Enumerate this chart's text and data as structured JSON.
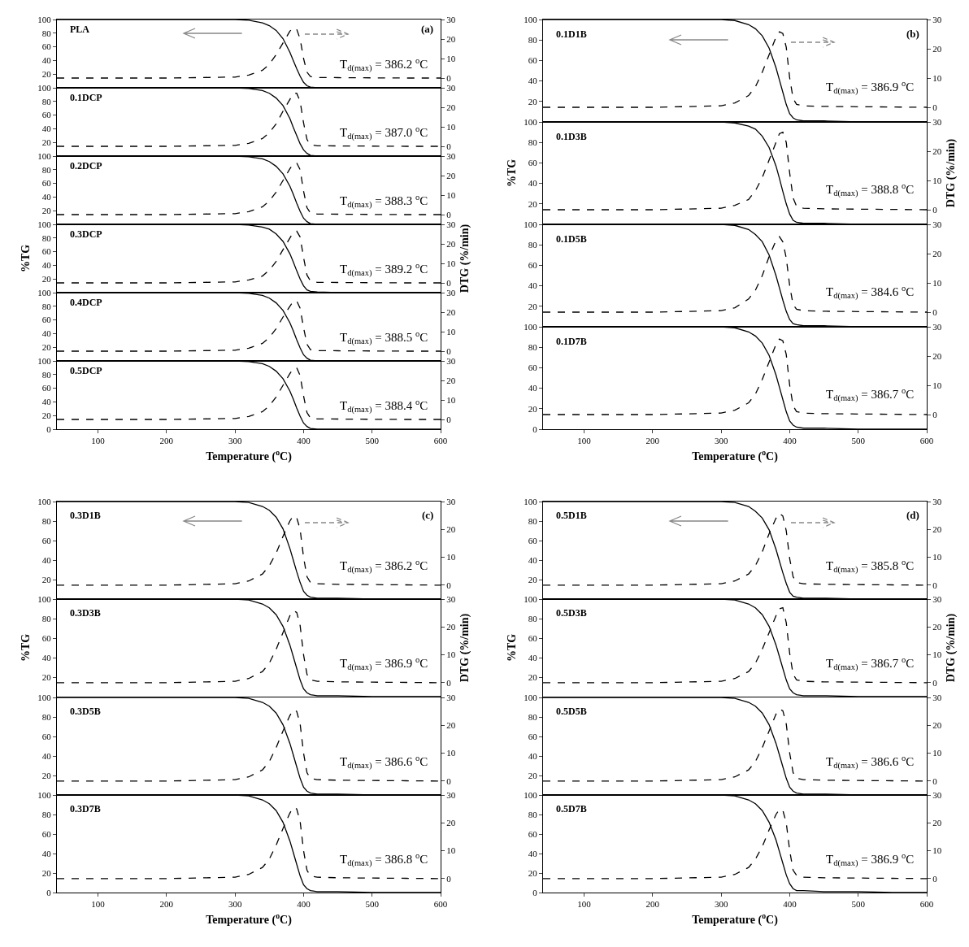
{
  "chart_data": [
    {
      "type": "line",
      "x": [
        40,
        200,
        300,
        320,
        340,
        350,
        360,
        370,
        380,
        385,
        390,
        395,
        400,
        405,
        410,
        420,
        450,
        500,
        550,
        600
      ],
      "xlim": [
        40,
        600
      ],
      "xticks": [
        100,
        200,
        300,
        400,
        500,
        600
      ],
      "ylim": [
        0,
        100
      ],
      "yticks": [
        20,
        40,
        60,
        80,
        100
      ],
      "y2lim": [
        -5,
        30
      ],
      "y2ticks": [
        0,
        10,
        20,
        30
      ],
      "tick_labels": "y",
      "annotations": [
        "PLA",
        "T$_{d(max)}$ = 386.2 $^{o}$C",
        "(a)"
      ],
      "series": [
        {
          "color": "#000000",
          "line_style": "solid",
          "values": [
            100,
            100,
            100,
            99,
            95,
            91,
            84,
            72,
            52,
            40,
            28,
            17,
            8,
            3,
            1,
            0,
            0,
            0,
            0,
            0
          ]
        },
        {
          "color": "#000000",
          "line_style": "dashed",
          "axis": "y2",
          "values": [
            0,
            0,
            0.5,
            1.5,
            4,
            7,
            12,
            18,
            24,
            25.8,
            25,
            20,
            10,
            3,
            0.8,
            0.3,
            0.2,
            0.1,
            0,
            0
          ]
        }
      ]
    },
    {
      "type": "line",
      "x": [
        40,
        200,
        300,
        320,
        340,
        350,
        360,
        370,
        380,
        385,
        390,
        395,
        400,
        405,
        410,
        420,
        450,
        500,
        550,
        600
      ],
      "xlim": [
        40,
        600
      ],
      "xticks": [
        100,
        200,
        300,
        400,
        500,
        600
      ],
      "ylim": [
        0,
        100
      ],
      "yticks": [
        20,
        40,
        60,
        80,
        100
      ],
      "y2lim": [
        -5,
        30
      ],
      "y2ticks": [
        0,
        10,
        20,
        30
      ],
      "tick_labels": "y",
      "annotations": [
        "0.1DCP",
        "T$_{d(max)}$ = 387.0 $^{o}$C"
      ],
      "series": [
        {
          "color": "#000000",
          "line_style": "solid",
          "values": [
            100,
            100,
            100,
            99,
            96,
            92,
            85,
            74,
            55,
            42,
            30,
            18,
            9,
            4,
            1,
            0,
            0,
            0,
            0,
            0
          ]
        },
        {
          "color": "#000000",
          "line_style": "dashed",
          "axis": "y2",
          "values": [
            0,
            0,
            0.5,
            1.5,
            4,
            7,
            11.5,
            18,
            24,
            27,
            27.2,
            23,
            12,
            3.5,
            0.8,
            0.3,
            0.2,
            0.1,
            0,
            0
          ]
        }
      ]
    },
    {
      "type": "line",
      "x": [
        40,
        200,
        300,
        320,
        340,
        350,
        360,
        370,
        380,
        385,
        390,
        395,
        400,
        405,
        410,
        420,
        450,
        500,
        550,
        600
      ],
      "xlim": [
        40,
        600
      ],
      "xticks": [
        100,
        200,
        300,
        400,
        500,
        600
      ],
      "ylim": [
        0,
        100
      ],
      "yticks": [
        20,
        40,
        60,
        80,
        100
      ],
      "y2lim": [
        -5,
        30
      ],
      "y2ticks": [
        0,
        10,
        20,
        30
      ],
      "tick_labels": "y",
      "annotations": [
        "0.2DCP",
        "T$_{d(max)}$ = 388.3 $^{o}$C"
      ],
      "series": [
        {
          "color": "#000000",
          "line_style": "solid",
          "values": [
            100,
            100,
            100,
            99,
            96,
            92,
            85,
            74,
            56,
            44,
            31,
            19,
            9,
            4,
            1,
            0,
            0,
            0,
            0,
            0
          ]
        },
        {
          "color": "#000000",
          "line_style": "dashed",
          "axis": "y2",
          "values": [
            0,
            0,
            0.5,
            1.5,
            4,
            7,
            11.5,
            17.5,
            23.5,
            26,
            26.5,
            23,
            12,
            3.5,
            0.8,
            0.3,
            0.2,
            0.1,
            0,
            0
          ]
        }
      ]
    },
    {
      "type": "line",
      "x": [
        40,
        200,
        300,
        320,
        340,
        350,
        360,
        370,
        380,
        385,
        390,
        395,
        400,
        405,
        410,
        420,
        450,
        500,
        550,
        600
      ],
      "xlim": [
        40,
        600
      ],
      "xticks": [
        100,
        200,
        300,
        400,
        500,
        600
      ],
      "ylim": [
        0,
        100
      ],
      "yticks": [
        20,
        40,
        60,
        80,
        100
      ],
      "y2lim": [
        -5,
        30
      ],
      "y2ticks": [
        0,
        10,
        20,
        30
      ],
      "tick_labels": "y",
      "ylabel": "%TG",
      "y2label": "DTG (%/min)",
      "annotations": [
        "0.3DCP",
        "T$_{d(max)}$ = 389.2 $^{o}$C"
      ],
      "series": [
        {
          "color": "#000000",
          "line_style": "solid",
          "values": [
            100,
            100,
            100,
            99,
            96,
            93,
            86,
            75,
            57,
            45,
            32,
            20,
            10,
            4,
            2,
            1,
            0,
            0,
            0,
            0
          ]
        },
        {
          "color": "#000000",
          "line_style": "dashed",
          "axis": "y2",
          "values": [
            0,
            0,
            0.5,
            1.5,
            3.5,
            6.5,
            11,
            17,
            23,
            25.8,
            26.5,
            23.5,
            13,
            4,
            1,
            0.3,
            0.2,
            0.1,
            0,
            0
          ]
        }
      ]
    },
    {
      "type": "line",
      "x": [
        40,
        200,
        300,
        320,
        340,
        350,
        360,
        370,
        380,
        385,
        390,
        395,
        400,
        405,
        410,
        420,
        450,
        500,
        550,
        600
      ],
      "xlim": [
        40,
        600
      ],
      "xticks": [
        100,
        200,
        300,
        400,
        500,
        600
      ],
      "ylim": [
        0,
        100
      ],
      "yticks": [
        20,
        40,
        60,
        80,
        100
      ],
      "y2lim": [
        -5,
        30
      ],
      "y2ticks": [
        0,
        10,
        20,
        30
      ],
      "tick_labels": "y",
      "annotations": [
        "0.4DCP",
        "T$_{d(max)}$ = 388.5 $^{o}$C"
      ],
      "series": [
        {
          "color": "#000000",
          "line_style": "solid",
          "values": [
            100,
            100,
            100,
            99,
            96,
            92,
            85,
            74,
            56,
            44,
            31,
            19,
            9,
            4,
            1,
            0,
            0,
            0,
            0,
            0
          ]
        },
        {
          "color": "#000000",
          "line_style": "dashed",
          "axis": "y2",
          "values": [
            0,
            0,
            0.5,
            1.5,
            4,
            7,
            11.5,
            17.5,
            23,
            25.5,
            25.8,
            22,
            12,
            3.5,
            0.8,
            0.3,
            0.2,
            0.1,
            0,
            0
          ]
        }
      ]
    },
    {
      "type": "line",
      "x": [
        40,
        200,
        300,
        320,
        340,
        350,
        360,
        370,
        380,
        385,
        390,
        395,
        400,
        405,
        410,
        420,
        450,
        500,
        550,
        600
      ],
      "xlim": [
        40,
        600
      ],
      "xticks": [
        100,
        200,
        300,
        400,
        500,
        600
      ],
      "ylim": [
        0,
        100
      ],
      "yticks": [
        0,
        20,
        40,
        60,
        80,
        100
      ],
      "y2lim": [
        -5,
        30
      ],
      "y2ticks": [
        0,
        10,
        20,
        30
      ],
      "xlabel": "Temperature ($^{o}$C)",
      "annotations": [
        "0.5DCP",
        "T$_{d(max)}$ = 388.4 $^{o}$C"
      ],
      "series": [
        {
          "color": "#000000",
          "line_style": "solid",
          "values": [
            100,
            100,
            100,
            99,
            96,
            92,
            85,
            74,
            56,
            44,
            31,
            19,
            9,
            4,
            1,
            0,
            0,
            0,
            0,
            0
          ]
        },
        {
          "color": "#000000",
          "line_style": "dashed",
          "axis": "y2",
          "values": [
            0,
            0,
            0.5,
            1.5,
            4,
            7,
            11.5,
            17.5,
            23.5,
            26,
            26.5,
            22.5,
            12,
            3.5,
            0.8,
            0.3,
            0.2,
            0.1,
            0,
            0
          ]
        }
      ]
    },
    {
      "type": "line",
      "x": [
        40,
        200,
        300,
        320,
        340,
        350,
        360,
        370,
        380,
        385,
        390,
        395,
        400,
        405,
        410,
        420,
        450,
        500,
        550,
        600
      ],
      "xlim": [
        40,
        600
      ],
      "xticks": [
        100,
        200,
        300,
        400,
        500,
        600
      ],
      "ylim": [
        0,
        100
      ],
      "yticks": [
        20,
        40,
        60,
        80,
        100
      ],
      "y2lim": [
        -5,
        30
      ],
      "y2ticks": [
        0,
        10,
        20,
        30
      ],
      "tick_labels": "y",
      "annotations": [
        "0.1D1B",
        "T$_{d(max)}$ = 386.9 $^{o}$C",
        "(b)"
      ],
      "series": [
        {
          "color": "#000000",
          "line_style": "solid",
          "values": [
            100,
            100,
            100,
            99,
            95,
            91,
            84,
            72,
            53,
            41,
            29,
            17,
            8,
            4,
            2,
            1,
            1,
            0,
            0,
            0
          ]
        },
        {
          "color": "#000000",
          "line_style": "dashed",
          "axis": "y2",
          "values": [
            0,
            0,
            0.5,
            1.5,
            4,
            7,
            12,
            18,
            24,
            25.8,
            25.2,
            20.5,
            10,
            3,
            1,
            0.5,
            0.3,
            0.2,
            0.1,
            0
          ]
        }
      ]
    },
    {
      "type": "line",
      "x": [
        40,
        200,
        300,
        320,
        340,
        350,
        360,
        370,
        380,
        385,
        390,
        395,
        400,
        405,
        410,
        420,
        450,
        500,
        550,
        600
      ],
      "xlim": [
        40,
        600
      ],
      "xticks": [
        100,
        200,
        300,
        400,
        500,
        600
      ],
      "ylim": [
        0,
        100
      ],
      "yticks": [
        20,
        40,
        60,
        80,
        100
      ],
      "y2lim": [
        -5,
        30
      ],
      "y2ticks": [
        0,
        10,
        20,
        30
      ],
      "tick_labels": "y",
      "ylabel": "%TG",
      "y2label": "DTG (%/min)",
      "annotations": [
        "0.1D3B",
        "T$_{d(max)}$ = 388.8 $^{o}$C"
      ],
      "series": [
        {
          "color": "#000000",
          "line_style": "solid",
          "values": [
            100,
            100,
            100,
            99,
            96,
            93,
            86,
            75,
            57,
            45,
            32,
            20,
            10,
            4,
            2,
            1,
            1,
            0,
            0,
            0
          ]
        },
        {
          "color": "#000000",
          "line_style": "dashed",
          "axis": "y2",
          "values": [
            0,
            0,
            0.5,
            1.5,
            3.5,
            6.5,
            11,
            17,
            23,
            26,
            26.5,
            23,
            12.5,
            4,
            1.2,
            0.5,
            0.3,
            0.2,
            0.1,
            0
          ]
        }
      ]
    },
    {
      "type": "line",
      "x": [
        40,
        200,
        300,
        320,
        340,
        350,
        360,
        370,
        380,
        385,
        390,
        395,
        400,
        405,
        410,
        420,
        450,
        500,
        550,
        600
      ],
      "xlim": [
        40,
        600
      ],
      "xticks": [
        100,
        200,
        300,
        400,
        500,
        600
      ],
      "ylim": [
        0,
        100
      ],
      "yticks": [
        20,
        40,
        60,
        80,
        100
      ],
      "y2lim": [
        -5,
        30
      ],
      "y2ticks": [
        0,
        10,
        20,
        30
      ],
      "tick_labels": "y",
      "annotations": [
        "0.1D5B",
        "T$_{d(max)}$ = 384.6 $^{o}$C"
      ],
      "series": [
        {
          "color": "#000000",
          "line_style": "solid",
          "values": [
            100,
            100,
            100,
            99,
            95,
            90,
            83,
            70,
            50,
            38,
            26,
            15,
            7,
            3,
            2,
            1,
            1,
            0,
            0,
            0
          ]
        },
        {
          "color": "#000000",
          "line_style": "dashed",
          "axis": "y2",
          "values": [
            0,
            0,
            0.5,
            1.5,
            4.5,
            7.5,
            12.5,
            19,
            24.5,
            25.8,
            24,
            18.5,
            9,
            2.5,
            1,
            0.5,
            0.3,
            0.2,
            0.1,
            0
          ]
        }
      ]
    },
    {
      "type": "line",
      "x": [
        40,
        200,
        300,
        320,
        340,
        350,
        360,
        370,
        380,
        385,
        390,
        395,
        400,
        405,
        410,
        420,
        450,
        500,
        550,
        600
      ],
      "xlim": [
        40,
        600
      ],
      "xticks": [
        100,
        200,
        300,
        400,
        500,
        600
      ],
      "ylim": [
        0,
        100
      ],
      "yticks": [
        0,
        20,
        40,
        60,
        80,
        100
      ],
      "y2lim": [
        -5,
        30
      ],
      "y2ticks": [
        0,
        10,
        20,
        30
      ],
      "xlabel": "Temperature ($^{o}$C)",
      "annotations": [
        "0.1D7B",
        "T$_{d(max)}$ = 386.7 $^{o}$C"
      ],
      "series": [
        {
          "color": "#000000",
          "line_style": "solid",
          "values": [
            100,
            100,
            100,
            99,
            95,
            91,
            84,
            72,
            53,
            41,
            29,
            17,
            8,
            4,
            2,
            1,
            1,
            0,
            0,
            0
          ]
        },
        {
          "color": "#000000",
          "line_style": "dashed",
          "axis": "y2",
          "values": [
            0,
            0,
            0.5,
            1.5,
            4,
            7,
            12,
            18,
            24,
            25.8,
            25.2,
            20.5,
            10,
            3,
            1,
            0.5,
            0.3,
            0.2,
            0.1,
            0
          ]
        }
      ]
    },
    {
      "type": "line",
      "x": [
        40,
        200,
        300,
        320,
        340,
        350,
        360,
        370,
        380,
        385,
        390,
        395,
        400,
        405,
        410,
        420,
        450,
        500,
        550,
        600
      ],
      "xlim": [
        40,
        600
      ],
      "xticks": [
        100,
        200,
        300,
        400,
        500,
        600
      ],
      "ylim": [
        0,
        100
      ],
      "yticks": [
        20,
        40,
        60,
        80,
        100
      ],
      "y2lim": [
        -5,
        30
      ],
      "y2ticks": [
        0,
        10,
        20,
        30
      ],
      "tick_labels": "y",
      "annotations": [
        "0.3D1B",
        "T$_{d(max)}$ = 386.2 $^{o}$C",
        "(c)"
      ],
      "series": [
        {
          "color": "#000000",
          "line_style": "solid",
          "values": [
            100,
            100,
            100,
            99,
            95,
            91,
            84,
            72,
            52,
            40,
            28,
            17,
            8,
            4,
            2,
            1,
            1,
            0,
            0,
            0
          ]
        },
        {
          "color": "#000000",
          "line_style": "dashed",
          "axis": "y2",
          "values": [
            0,
            0,
            0.5,
            1.5,
            4,
            7,
            11.5,
            17.5,
            23,
            24.8,
            24.2,
            20,
            10,
            3,
            1,
            0.5,
            0.3,
            0.2,
            0.1,
            0
          ]
        }
      ]
    },
    {
      "type": "line",
      "x": [
        40,
        200,
        300,
        320,
        340,
        350,
        360,
        370,
        380,
        385,
        390,
        395,
        400,
        405,
        410,
        420,
        450,
        500,
        550,
        600
      ],
      "xlim": [
        40,
        600
      ],
      "xticks": [
        100,
        200,
        300,
        400,
        500,
        600
      ],
      "ylim": [
        0,
        100
      ],
      "yticks": [
        20,
        40,
        60,
        80,
        100
      ],
      "y2lim": [
        -5,
        30
      ],
      "y2ticks": [
        0,
        10,
        20,
        30
      ],
      "tick_labels": "y",
      "ylabel": "%TG",
      "y2label": "DTG (%/min)",
      "annotations": [
        "0.3D3B",
        "T$_{d(max)}$ = 386.9 $^{o}$C"
      ],
      "series": [
        {
          "color": "#000000",
          "line_style": "solid",
          "values": [
            100,
            100,
            100,
            99,
            95,
            91,
            84,
            72,
            53,
            41,
            29,
            17,
            8,
            4,
            2,
            1,
            1,
            0,
            0,
            0
          ]
        },
        {
          "color": "#000000",
          "line_style": "dashed",
          "axis": "y2",
          "values": [
            0,
            0,
            0.5,
            1.5,
            4,
            7,
            12,
            18,
            24,
            25.8,
            25.2,
            20.5,
            10,
            3,
            1,
            0.5,
            0.3,
            0.2,
            0.1,
            0
          ]
        }
      ]
    },
    {
      "type": "line",
      "x": [
        40,
        200,
        300,
        320,
        340,
        350,
        360,
        370,
        380,
        385,
        390,
        395,
        400,
        405,
        410,
        420,
        450,
        500,
        550,
        600
      ],
      "xlim": [
        40,
        600
      ],
      "xticks": [
        100,
        200,
        300,
        400,
        500,
        600
      ],
      "ylim": [
        0,
        100
      ],
      "yticks": [
        20,
        40,
        60,
        80,
        100
      ],
      "y2lim": [
        -5,
        30
      ],
      "y2ticks": [
        0,
        10,
        20,
        30
      ],
      "tick_labels": "y",
      "annotations": [
        "0.3D5B",
        "T$_{d(max)}$ = 386.6 $^{o}$C"
      ],
      "series": [
        {
          "color": "#000000",
          "line_style": "solid",
          "values": [
            100,
            100,
            100,
            99,
            95,
            91,
            84,
            72,
            53,
            41,
            29,
            17,
            8,
            4,
            2,
            1,
            1,
            0,
            0,
            0
          ]
        },
        {
          "color": "#000000",
          "line_style": "dashed",
          "axis": "y2",
          "values": [
            0,
            0,
            0.5,
            1.5,
            4,
            7,
            12,
            18,
            23.5,
            25.5,
            25,
            20.5,
            10,
            3,
            1,
            0.5,
            0.3,
            0.2,
            0.1,
            0
          ]
        }
      ]
    },
    {
      "type": "line",
      "x": [
        40,
        200,
        300,
        320,
        340,
        350,
        360,
        370,
        380,
        385,
        390,
        395,
        400,
        405,
        410,
        420,
        450,
        500,
        550,
        600
      ],
      "xlim": [
        40,
        600
      ],
      "xticks": [
        100,
        200,
        300,
        400,
        500,
        600
      ],
      "ylim": [
        0,
        100
      ],
      "yticks": [
        0,
        20,
        40,
        60,
        80,
        100
      ],
      "y2lim": [
        -5,
        30
      ],
      "y2ticks": [
        0,
        10,
        20,
        30
      ],
      "xlabel": "Temperature ($^{o}$C)",
      "annotations": [
        "0.3D7B",
        "T$_{d(max)}$ = 386.8 $^{o}$C"
      ],
      "series": [
        {
          "color": "#000000",
          "line_style": "solid",
          "values": [
            100,
            100,
            100,
            99,
            95,
            91,
            84,
            72,
            53,
            41,
            29,
            17,
            8,
            4,
            2,
            1,
            1,
            0,
            0,
            0
          ]
        },
        {
          "color": "#000000",
          "line_style": "dashed",
          "axis": "y2",
          "values": [
            0,
            0,
            0.5,
            1.5,
            4,
            7,
            12,
            18,
            23.5,
            25.5,
            25,
            20.5,
            10,
            3,
            1,
            0.5,
            0.3,
            0.2,
            0.1,
            0
          ]
        }
      ]
    },
    {
      "type": "line",
      "x": [
        40,
        200,
        300,
        320,
        340,
        350,
        360,
        370,
        380,
        385,
        390,
        395,
        400,
        405,
        410,
        420,
        450,
        500,
        550,
        600
      ],
      "xlim": [
        40,
        600
      ],
      "xticks": [
        100,
        200,
        300,
        400,
        500,
        600
      ],
      "ylim": [
        0,
        100
      ],
      "yticks": [
        20,
        40,
        60,
        80,
        100
      ],
      "y2lim": [
        -5,
        30
      ],
      "y2ticks": [
        0,
        10,
        20,
        30
      ],
      "tick_labels": "y",
      "annotations": [
        "0.5D1B",
        "T$_{d(max)}$ = 385.8 $^{o}$C",
        "(d)"
      ],
      "series": [
        {
          "color": "#000000",
          "line_style": "solid",
          "values": [
            100,
            100,
            100,
            99,
            95,
            90,
            83,
            71,
            51,
            39,
            27,
            16,
            7,
            3,
            2,
            1,
            1,
            0,
            0,
            0
          ]
        },
        {
          "color": "#000000",
          "line_style": "dashed",
          "axis": "y2",
          "values": [
            0,
            0,
            0.5,
            1.5,
            4,
            7,
            12,
            18.5,
            24,
            25.8,
            24.8,
            19.5,
            9.5,
            3,
            1,
            0.5,
            0.3,
            0.2,
            0.1,
            0
          ]
        }
      ]
    },
    {
      "type": "line",
      "x": [
        40,
        200,
        300,
        320,
        340,
        350,
        360,
        370,
        380,
        385,
        390,
        395,
        400,
        405,
        410,
        420,
        450,
        500,
        550,
        600
      ],
      "xlim": [
        40,
        600
      ],
      "xticks": [
        100,
        200,
        300,
        400,
        500,
        600
      ],
      "ylim": [
        0,
        100
      ],
      "yticks": [
        20,
        40,
        60,
        80,
        100
      ],
      "y2lim": [
        -5,
        30
      ],
      "y2ticks": [
        0,
        10,
        20,
        30
      ],
      "tick_labels": "y",
      "ylabel": "%TG",
      "y2label": "DTG (%/min)",
      "annotations": [
        "0.5D3B",
        "T$_{d(max)}$ = 386.7 $^{o}$C"
      ],
      "series": [
        {
          "color": "#000000",
          "line_style": "solid",
          "values": [
            100,
            100,
            100,
            99,
            95,
            91,
            84,
            72,
            53,
            41,
            29,
            17,
            8,
            4,
            2,
            1,
            1,
            0,
            0,
            0
          ]
        },
        {
          "color": "#000000",
          "line_style": "dashed",
          "axis": "y2",
          "values": [
            0,
            0,
            0.5,
            1.5,
            4,
            7,
            12,
            18,
            24,
            26.5,
            26.9,
            21.5,
            10.5,
            3,
            1,
            0.5,
            0.3,
            0.2,
            0.1,
            0
          ]
        }
      ]
    },
    {
      "type": "line",
      "x": [
        40,
        200,
        300,
        320,
        340,
        350,
        360,
        370,
        380,
        385,
        390,
        395,
        400,
        405,
        410,
        420,
        450,
        500,
        550,
        600
      ],
      "xlim": [
        40,
        600
      ],
      "xticks": [
        100,
        200,
        300,
        400,
        500,
        600
      ],
      "ylim": [
        0,
        100
      ],
      "yticks": [
        20,
        40,
        60,
        80,
        100
      ],
      "y2lim": [
        -5,
        30
      ],
      "y2ticks": [
        0,
        10,
        20,
        30
      ],
      "tick_labels": "y",
      "annotations": [
        "0.5D5B",
        "T$_{d(max)}$ = 386.6 $^{o}$C"
      ],
      "series": [
        {
          "color": "#000000",
          "line_style": "solid",
          "values": [
            100,
            100,
            100,
            99,
            95,
            91,
            84,
            72,
            53,
            41,
            29,
            17,
            8,
            4,
            2,
            1,
            1,
            0,
            0,
            0
          ]
        },
        {
          "color": "#000000",
          "line_style": "dashed",
          "axis": "y2",
          "values": [
            0,
            0,
            0.5,
            1.5,
            4,
            7,
            12,
            18,
            24,
            25.8,
            25.2,
            20.5,
            10,
            3,
            1,
            0.5,
            0.3,
            0.2,
            0.1,
            0
          ]
        }
      ]
    },
    {
      "type": "line",
      "x": [
        40,
        200,
        300,
        320,
        340,
        350,
        360,
        370,
        380,
        385,
        390,
        395,
        400,
        405,
        410,
        420,
        450,
        500,
        550,
        600
      ],
      "xlim": [
        40,
        600
      ],
      "xticks": [
        100,
        200,
        300,
        400,
        500,
        600
      ],
      "ylim": [
        0,
        100
      ],
      "yticks": [
        0,
        20,
        40,
        60,
        80,
        100
      ],
      "y2lim": [
        -5,
        30
      ],
      "y2ticks": [
        0,
        10,
        20,
        30
      ],
      "xlabel": "Temperature ($^{o}$C)",
      "annotations": [
        "0.5D7B",
        "T$_{d(max)}$ = 386.9 $^{o}$C"
      ],
      "series": [
        {
          "color": "#000000",
          "line_style": "solid",
          "values": [
            100,
            100,
            100,
            99,
            95,
            91,
            84,
            72,
            54,
            42,
            30,
            18,
            9,
            4,
            2,
            2,
            1,
            1,
            0,
            0
          ]
        },
        {
          "color": "#000000",
          "line_style": "dashed",
          "axis": "y2",
          "values": [
            0,
            0,
            0.5,
            1.5,
            4,
            7,
            11.5,
            17.5,
            23,
            24.8,
            24.5,
            20,
            10,
            3,
            1.2,
            0.5,
            0.3,
            0.2,
            0.1,
            0
          ]
        }
      ]
    }
  ]
}
